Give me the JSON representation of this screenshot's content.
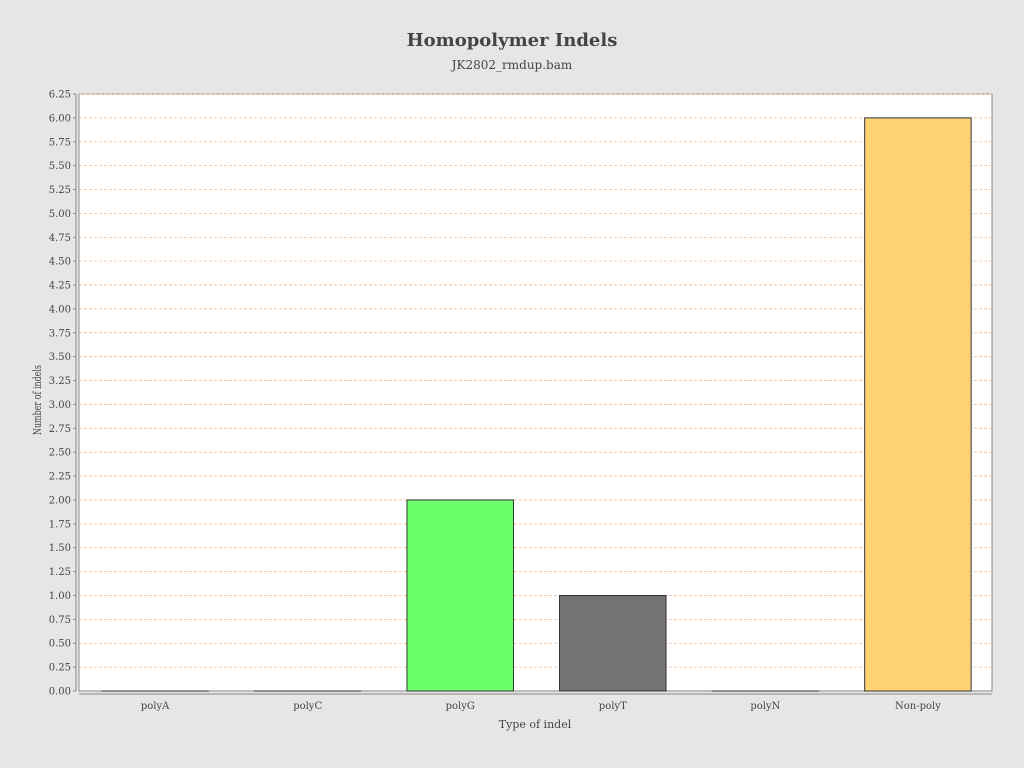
{
  "chart_data": {
    "type": "bar",
    "title": "Homopolymer Indels",
    "subtitle": "JK2802_rmdup.bam",
    "xlabel": "Type of indel",
    "ylabel": "Number of indels",
    "categories": [
      "polyA",
      "polyC",
      "polyG",
      "polyT",
      "polyN",
      "Non-poly"
    ],
    "values": [
      0,
      0,
      2,
      1,
      0,
      6
    ],
    "colors": [
      "#4d4d4d",
      "#4d4d4d",
      "#6bff6b",
      "#737373",
      "#4d4d4d",
      "#ffd373"
    ],
    "ylim": [
      0,
      6.25
    ],
    "yticks": [
      "0.00",
      "0.25",
      "0.50",
      "0.75",
      "1.00",
      "1.25",
      "1.50",
      "1.75",
      "2.00",
      "2.25",
      "2.50",
      "2.75",
      "3.00",
      "3.25",
      "3.50",
      "3.75",
      "4.00",
      "4.25",
      "4.50",
      "4.75",
      "5.00",
      "5.25",
      "5.50",
      "5.75",
      "6.00",
      "6.25"
    ],
    "grid": true,
    "grid_color": "#f5b98d",
    "plot_background": "#ffffff",
    "page_background": "#e6e6e6"
  }
}
